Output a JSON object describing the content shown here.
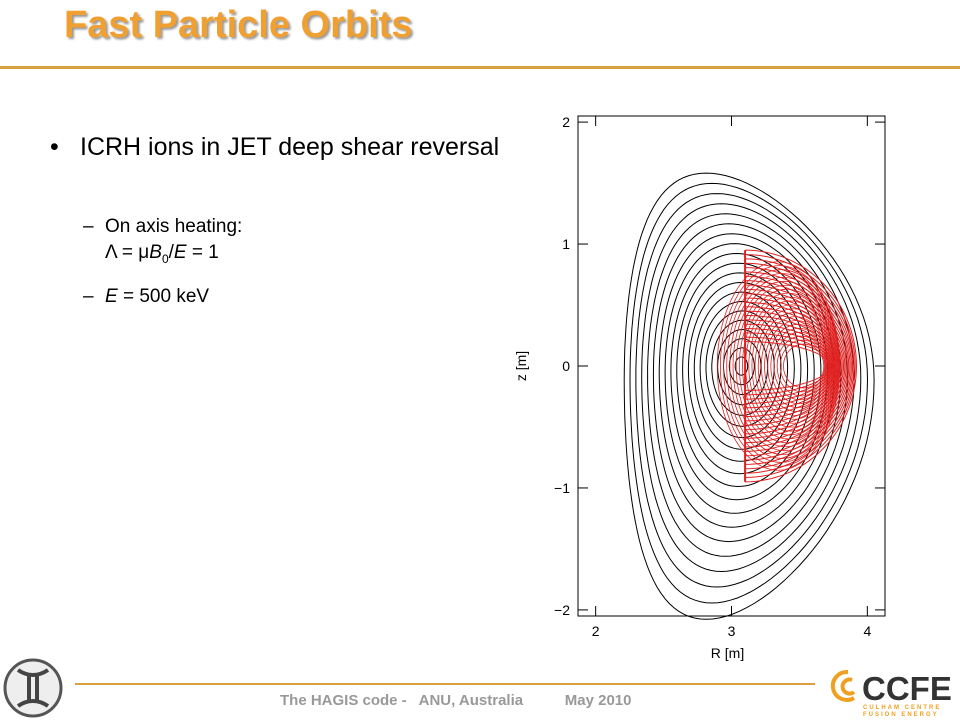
{
  "title": "Fast Particle Orbits",
  "bullets": [
    {
      "text": "ICRH ions in JET deep shear reversal",
      "sub": [
        {
          "lines": [
            [
              "On axis heating:"
            ],
            [
              "Λ = μ",
              "B",
              "0",
              "/",
              "E",
              " = 1"
            ]
          ]
        },
        {
          "lines": [
            [
              "E",
              " = 500 keV"
            ]
          ]
        }
      ]
    }
  ],
  "plot": {
    "xlabel": "R [m]",
    "ylabel": "z [m]",
    "xlim": [
      1.87,
      4.13
    ],
    "ylim": [
      -2.05,
      2.05
    ],
    "xticks": [
      2,
      3,
      4
    ],
    "yticks": [
      {
        "value": -2,
        "label": "−2"
      },
      {
        "value": -1,
        "label": "−1"
      },
      0,
      1,
      2
    ]
  },
  "footer": {
    "text": "The HAGIS code -   ANU, Australia          May 2010",
    "logo": "CCFE",
    "logo_sub": [
      "CULHAM CENTRE",
      "FUSION ENERGY"
    ]
  }
}
